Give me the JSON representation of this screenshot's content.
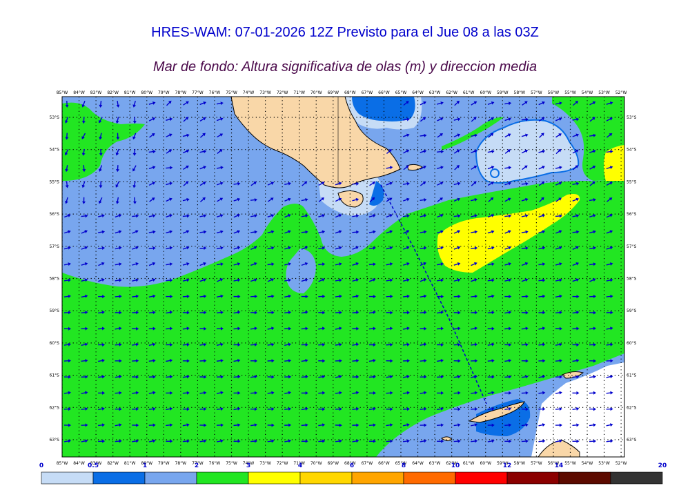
{
  "title": "HRES-WAM: 07-01-2026 12Z Previsto para el Jue 08 a las 03Z",
  "subtitle": "Mar de fondo: Altura significativa de olas (m) y direccion media",
  "colors": {
    "title": "#0000cc",
    "subtitle": "#4b0a4b",
    "arrow": "#0000cc",
    "land": "#f9d7a8",
    "dotted_grid": "#000000"
  },
  "lon_labels": [
    "85°W",
    "84°W",
    "83°W",
    "82°W",
    "81°W",
    "80°W",
    "79°W",
    "78°W",
    "77°W",
    "76°W",
    "75°W",
    "74°W",
    "73°W",
    "72°W",
    "71°W",
    "70°W",
    "69°W",
    "68°W",
    "67°W",
    "66°W",
    "65°W",
    "64°W",
    "63°W",
    "62°W",
    "61°W",
    "60°W",
    "59°W",
    "58°W",
    "57°W",
    "56°W",
    "55°W",
    "54°W",
    "53°W",
    "52°W"
  ],
  "lat_labels": [
    "53°S",
    "54°S",
    "55°S",
    "56°S",
    "57°S",
    "58°S",
    "59°S",
    "60°S",
    "61°S",
    "62°S",
    "63°S"
  ],
  "colorbar": {
    "ticks": [
      "0",
      "0.5",
      "1",
      "2",
      "3",
      "4",
      "6",
      "8",
      "10",
      "12",
      "14",
      "20"
    ],
    "colors": [
      "#c6dcf6",
      "#0a6ee6",
      "#78a6ee",
      "#22e622",
      "#ffff00",
      "#ffd700",
      "#ffa500",
      "#ff6a00",
      "#ff0000",
      "#8b0000",
      "#5c0a00",
      "#333333"
    ]
  }
}
